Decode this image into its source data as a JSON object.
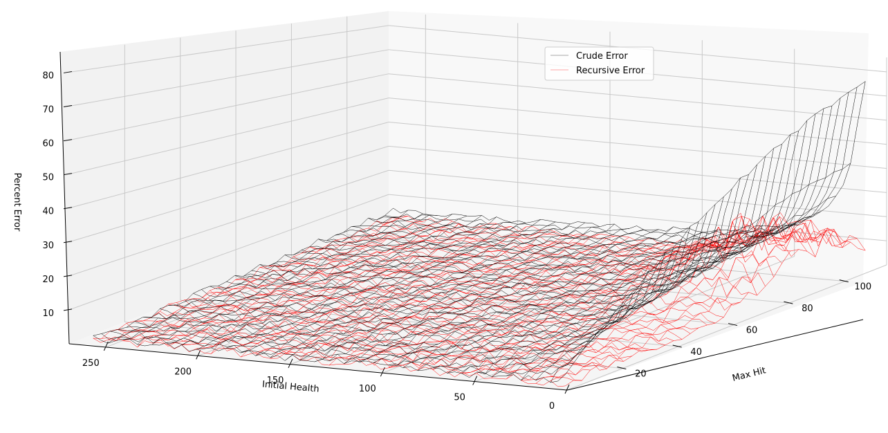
{
  "chart_data": {
    "type": "surface-wireframe",
    "title": "",
    "xlabel": "Initial Health",
    "ylabel": "Max Hit",
    "zlabel": "Percent Error",
    "x_ticks": [
      "250",
      "200",
      "150",
      "100",
      "50",
      "0"
    ],
    "y_ticks": [
      "20",
      "40",
      "60",
      "80",
      "100"
    ],
    "z_ticks": [
      "10",
      "20",
      "30",
      "40",
      "50",
      "60",
      "70",
      "80"
    ],
    "xlim": [
      0,
      270
    ],
    "ylim": [
      0,
      115
    ],
    "zlim": [
      0,
      86
    ],
    "grid": true,
    "legend_position": "upper-right",
    "series": [
      {
        "name": "Crude Error",
        "color": "#000000",
        "shape": "Low error (about 1–5%) over most of the grid; rises steeply where Max Hit exceeds roughly one quarter of Initial Health, reaching about 85% at Initial Health 0–10 and Max Hit 110.",
        "samples": [
          {
            "initial_health": 250,
            "max_hit": 10,
            "percent_error": 1
          },
          {
            "initial_health": 150,
            "max_hit": 60,
            "percent_error": 4
          },
          {
            "initial_health": 50,
            "max_hit": 20,
            "percent_error": 5
          },
          {
            "initial_health": 50,
            "max_hit": 100,
            "percent_error": 40
          },
          {
            "initial_health": 10,
            "max_hit": 60,
            "percent_error": 55
          },
          {
            "initial_health": 5,
            "max_hit": 110,
            "percent_error": 85
          }
        ]
      },
      {
        "name": "Recursive Error",
        "color": "#ff0000",
        "shape": "Noisy surface mostly between 0% and 5%, with a ridge up to about 20–25% near Max Hit 80–100 at low Initial Health.",
        "samples": [
          {
            "initial_health": 250,
            "max_hit": 10,
            "percent_error": 0.5
          },
          {
            "initial_health": 150,
            "max_hit": 60,
            "percent_error": 3
          },
          {
            "initial_health": 50,
            "max_hit": 20,
            "percent_error": 2
          },
          {
            "initial_health": 40,
            "max_hit": 90,
            "percent_error": 20
          },
          {
            "initial_health": 5,
            "max_hit": 100,
            "percent_error": 22
          },
          {
            "initial_health": 5,
            "max_hit": 110,
            "percent_error": 13
          }
        ]
      }
    ]
  }
}
